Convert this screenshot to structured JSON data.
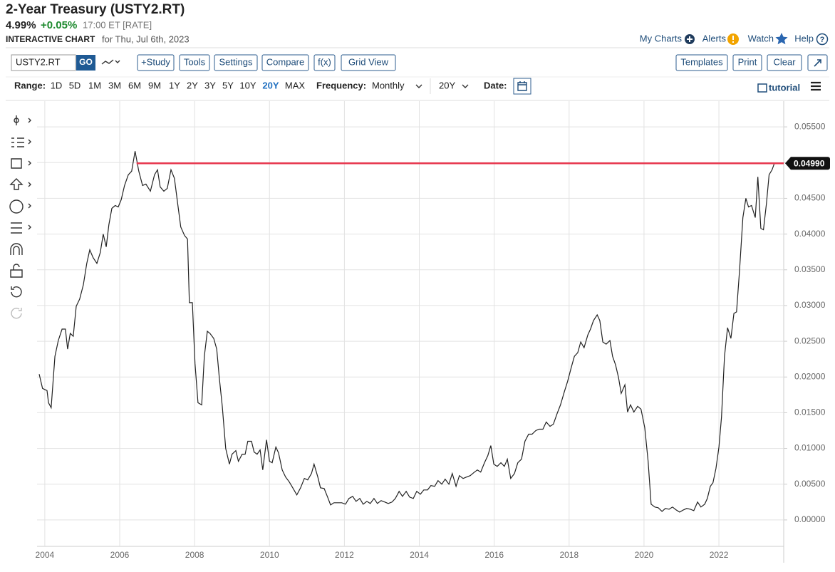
{
  "header": {
    "title": "2-Year Treasury (USTY2.RT)",
    "price": "4.99%",
    "change": "+0.05%",
    "time": "17:00 ET [RATE]",
    "chart_label": "INTERACTIVE CHART",
    "date_text": "for Thu, Jul 6th, 2023",
    "links": [
      "My Charts",
      "Alerts",
      "Watch",
      "Help"
    ]
  },
  "toolbar": {
    "symbol": "USTY2.RT",
    "go": "GO",
    "buttons": [
      "+Study",
      "Tools",
      "Settings",
      "Compare",
      "f(x)",
      "Grid View"
    ],
    "right_buttons": [
      "Templates",
      "Print",
      "Clear"
    ]
  },
  "range_bar": {
    "label": "Range:",
    "ranges": [
      "1D",
      "5D",
      "1M",
      "3M",
      "6M",
      "9M",
      "1Y",
      "2Y",
      "3Y",
      "5Y",
      "10Y",
      "20Y",
      "MAX"
    ],
    "active_range": "20Y",
    "frequency_label": "Frequency:",
    "frequency": "Monthly",
    "period": "20Y",
    "date_label": "Date:",
    "tutorial": "tutorial"
  },
  "chart_data": {
    "type": "line",
    "color": "#222222",
    "x": [
      2003.85,
      2003.94,
      2004.06,
      2004.1,
      2004.17,
      2004.27,
      2004.36,
      2004.46,
      2004.55,
      2004.61,
      2004.68,
      2004.76,
      2004.84,
      2004.93,
      2005.03,
      2005.12,
      2005.2,
      2005.29,
      2005.39,
      2005.48,
      2005.56,
      2005.64,
      2005.71,
      2005.79,
      2005.88,
      2005.96,
      2006.04,
      2006.13,
      2006.23,
      2006.32,
      2006.41,
      2006.51,
      2006.61,
      2006.7,
      2006.82,
      2006.93,
      2007.01,
      2007.08,
      2007.18,
      2007.27,
      2007.37,
      2007.46,
      2007.56,
      2007.63,
      2007.73,
      2007.81,
      2007.86,
      2007.94,
      2008.01,
      2008.09,
      2008.19,
      2008.26,
      2008.34,
      2008.41,
      2008.51,
      2008.59,
      2008.66,
      2008.74,
      2008.83,
      2008.93,
      2009.0,
      2009.1,
      2009.17,
      2009.27,
      2009.35,
      2009.42,
      2009.52,
      2009.59,
      2009.67,
      2009.75,
      2009.82,
      2009.92,
      2010.0,
      2010.07,
      2010.17,
      2010.24,
      2010.34,
      2010.43,
      2010.53,
      2010.62,
      2010.73,
      2010.83,
      2010.93,
      2011.02,
      2011.12,
      2011.19,
      2011.29,
      2011.36,
      2011.46,
      2011.55,
      2011.63,
      2011.72,
      2011.82,
      2011.93,
      2012.03,
      2012.12,
      2012.22,
      2012.31,
      2012.41,
      2012.5,
      2012.6,
      2012.69,
      2012.79,
      2012.88,
      2012.98,
      2013.08,
      2013.17,
      2013.27,
      2013.36,
      2013.46,
      2013.55,
      2013.65,
      2013.74,
      2013.84,
      2013.93,
      2014.03,
      2014.12,
      2014.22,
      2014.31,
      2014.41,
      2014.5,
      2014.6,
      2014.69,
      2014.79,
      2014.88,
      2014.98,
      2015.07,
      2015.17,
      2015.26,
      2015.36,
      2015.45,
      2015.55,
      2015.64,
      2015.74,
      2015.83,
      2015.91,
      2015.99,
      2016.08,
      2016.18,
      2016.27,
      2016.35,
      2016.44,
      2016.54,
      2016.63,
      2016.73,
      2016.82,
      2016.92,
      2017.01,
      2017.11,
      2017.2,
      2017.3,
      2017.39,
      2017.49,
      2017.58,
      2017.68,
      2017.77,
      2017.87,
      2017.96,
      2018.06,
      2018.14,
      2018.23,
      2018.31,
      2018.4,
      2018.5,
      2018.57,
      2018.65,
      2018.75,
      2018.82,
      2018.9,
      2018.99,
      2019.09,
      2019.16,
      2019.24,
      2019.32,
      2019.39,
      2019.49,
      2019.56,
      2019.64,
      2019.73,
      2019.83,
      2019.92,
      2020.02,
      2020.11,
      2020.19,
      2020.29,
      2020.38,
      2020.48,
      2020.57,
      2020.67,
      2020.76,
      2020.86,
      2020.95,
      2021.05,
      2021.14,
      2021.24,
      2021.33,
      2021.43,
      2021.52,
      2021.62,
      2021.69,
      2021.77,
      2021.84,
      2021.92,
      2022.0,
      2022.07,
      2022.15,
      2022.23,
      2022.32,
      2022.4,
      2022.47,
      2022.55,
      2022.64,
      2022.72,
      2022.79,
      2022.87,
      2022.97,
      2023.04,
      2023.12,
      2023.19,
      2023.27,
      2023.34,
      2023.42,
      2023.48
    ],
    "values": [
      0.0204,
      0.0184,
      0.0181,
      0.0164,
      0.0157,
      0.0229,
      0.0251,
      0.0267,
      0.0267,
      0.0239,
      0.0261,
      0.0257,
      0.0299,
      0.0309,
      0.0329,
      0.0359,
      0.0378,
      0.0367,
      0.0359,
      0.0374,
      0.04,
      0.0382,
      0.0413,
      0.0436,
      0.044,
      0.0438,
      0.0448,
      0.0468,
      0.0483,
      0.0488,
      0.0516,
      0.0488,
      0.0468,
      0.047,
      0.046,
      0.0483,
      0.049,
      0.0466,
      0.046,
      0.0464,
      0.049,
      0.0478,
      0.0438,
      0.041,
      0.0398,
      0.0393,
      0.0304,
      0.0304,
      0.0219,
      0.0164,
      0.0161,
      0.0229,
      0.0264,
      0.0261,
      0.0254,
      0.0239,
      0.0199,
      0.0159,
      0.01,
      0.0078,
      0.0092,
      0.0097,
      0.0082,
      0.0092,
      0.0092,
      0.011,
      0.011,
      0.0095,
      0.0092,
      0.0098,
      0.007,
      0.0112,
      0.0082,
      0.008,
      0.0102,
      0.0094,
      0.007,
      0.006,
      0.0053,
      0.0045,
      0.0035,
      0.0045,
      0.0058,
      0.0056,
      0.0065,
      0.0078,
      0.006,
      0.0045,
      0.0044,
      0.0032,
      0.0021,
      0.0024,
      0.0024,
      0.0024,
      0.0022,
      0.003,
      0.0033,
      0.0026,
      0.003,
      0.0022,
      0.0026,
      0.0023,
      0.003,
      0.0023,
      0.0027,
      0.0025,
      0.0023,
      0.0025,
      0.003,
      0.004,
      0.0033,
      0.004,
      0.0032,
      0.003,
      0.004,
      0.0036,
      0.0042,
      0.0042,
      0.0048,
      0.0047,
      0.0055,
      0.005,
      0.0057,
      0.005,
      0.0065,
      0.0047,
      0.0062,
      0.0058,
      0.006,
      0.0062,
      0.0066,
      0.007,
      0.0067,
      0.008,
      0.009,
      0.0104,
      0.0078,
      0.0075,
      0.008,
      0.0075,
      0.0085,
      0.0058,
      0.0065,
      0.008,
      0.0085,
      0.011,
      0.012,
      0.012,
      0.0125,
      0.0127,
      0.0127,
      0.0137,
      0.0131,
      0.0134,
      0.0149,
      0.0161,
      0.0179,
      0.0194,
      0.0214,
      0.0229,
      0.0234,
      0.0249,
      0.0241,
      0.0259,
      0.0267,
      0.0279,
      0.0287,
      0.0279,
      0.0249,
      0.0246,
      0.0251,
      0.0229,
      0.0217,
      0.0199,
      0.0177,
      0.0189,
      0.0151,
      0.0161,
      0.0151,
      0.0159,
      0.0155,
      0.0129,
      0.0082,
      0.0022,
      0.0018,
      0.0017,
      0.0012,
      0.0016,
      0.0015,
      0.0018,
      0.0014,
      0.0011,
      0.0014,
      0.0016,
      0.0015,
      0.0013,
      0.0025,
      0.0018,
      0.0022,
      0.003,
      0.0047,
      0.0052,
      0.0072,
      0.0102,
      0.0144,
      0.0229,
      0.0269,
      0.0254,
      0.0289,
      0.0291,
      0.0349,
      0.0423,
      0.045,
      0.0438,
      0.044,
      0.0423,
      0.048,
      0.0408,
      0.0406,
      0.0443,
      0.0483,
      0.049,
      0.0499
    ],
    "xlim": [
      2003.85,
      2023.73
    ],
    "ylim": [
      -0.003,
      0.058
    ],
    "xticks": [
      2004,
      2006,
      2008,
      2010,
      2012,
      2014,
      2016,
      2018,
      2020,
      2022
    ],
    "yticks": [
      {
        "value": 0,
        "label": "0.00000"
      },
      {
        "value": 0.005,
        "label": "0.00500"
      },
      {
        "value": 0.01,
        "label": "0.01000"
      },
      {
        "value": 0.015,
        "label": "0.01500"
      },
      {
        "value": 0.02,
        "label": "0.02000"
      },
      {
        "value": 0.025,
        "label": "0.02500"
      },
      {
        "value": 0.03,
        "label": "0.03000"
      },
      {
        "value": 0.035,
        "label": "0.03500"
      },
      {
        "value": 0.04,
        "label": "0.04000"
      },
      {
        "value": 0.045,
        "label": "0.04500"
      },
      {
        "value": 0.05,
        "label": "0.05000"
      },
      {
        "value": 0.055,
        "label": "0.05500"
      }
    ],
    "grid": true,
    "reference_line": {
      "value": 0.0499,
      "label": "0.04990",
      "color": "#e8384f",
      "x_start": 2006.45
    }
  }
}
